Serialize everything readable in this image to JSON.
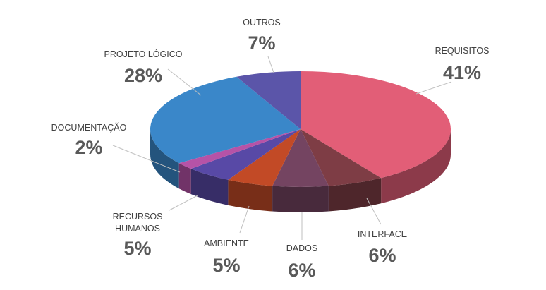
{
  "chart_data": {
    "type": "pie",
    "title": "",
    "style": "3d-exploded-none",
    "legend": "none",
    "data_labels": "category-and-percent",
    "slices": [
      {
        "label": "REQUISITOS",
        "pct_label": "41%",
        "value": 41,
        "color": "#E25E77"
      },
      {
        "label": "INTERFACE",
        "pct_label": "6%",
        "value": 6,
        "color": "#7E3D45"
      },
      {
        "label": "DADOS",
        "pct_label": "6%",
        "value": 6,
        "color": "#744461"
      },
      {
        "label": "AMBIENTE",
        "pct_label": "5%",
        "value": 5,
        "color": "#C24A26"
      },
      {
        "label": "RECURSOS HUMANOS",
        "label_lines": [
          "RECURSOS",
          "HUMANOS"
        ],
        "pct_label": "5%",
        "value": 5,
        "color": "#5849A6"
      },
      {
        "label": "DOCUMENTAÇÃO",
        "pct_label": "2%",
        "value": 2,
        "color": "#B653A7"
      },
      {
        "label": "PROJETO LÓGICO",
        "pct_label": "28%",
        "value": 28,
        "color": "#3A87C9"
      },
      {
        "label": "OUTROS",
        "pct_label": "7%",
        "value": 7,
        "color": "#5B55A9"
      }
    ]
  }
}
